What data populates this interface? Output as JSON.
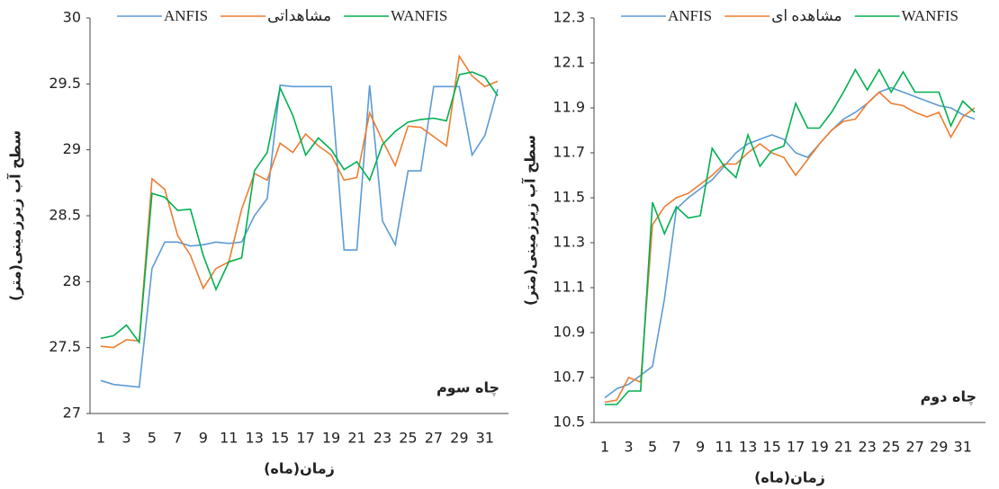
{
  "chart_data": [
    {
      "type": "line",
      "y_label": "سطح آب زیرزمینی(متر)",
      "x_label": "زمان(ماه)",
      "annotation": "چاه سوم",
      "legend": "top",
      "categories": [
        1,
        null,
        3,
        null,
        5,
        null,
        7,
        null,
        9,
        null,
        11,
        null,
        13,
        null,
        15,
        null,
        17,
        null,
        19,
        null,
        21,
        null,
        23,
        null,
        25,
        null,
        27,
        null,
        29,
        null,
        31,
        null
      ],
      "ylim": [
        27,
        30
      ],
      "yticks": [
        27,
        27.5,
        28,
        28.5,
        29,
        29.5,
        30
      ],
      "series": [
        {
          "name": "ANFIS",
          "color": "#5b9bd5",
          "values": [
            27.25,
            27.22,
            27.21,
            27.2,
            28.1,
            28.3,
            28.3,
            28.27,
            28.28,
            28.3,
            28.29,
            28.3,
            28.5,
            28.63,
            29.49,
            29.48,
            29.48,
            29.48,
            29.48,
            28.24,
            28.24,
            29.49,
            28.46,
            28.28,
            28.84,
            28.84,
            29.48,
            29.48,
            29.48,
            28.96,
            29.11,
            29.46
          ]
        },
        {
          "name": "مشاهداتی",
          "color": "#ed7d31",
          "values": [
            27.51,
            27.5,
            27.56,
            27.55,
            28.78,
            28.7,
            28.35,
            28.2,
            27.95,
            28.1,
            28.15,
            28.55,
            28.82,
            28.77,
            29.05,
            28.98,
            29.12,
            29.03,
            28.96,
            28.77,
            28.79,
            29.28,
            29.07,
            28.88,
            29.18,
            29.17,
            29.1,
            29.03,
            29.71,
            29.56,
            29.48,
            29.52
          ]
        },
        {
          "name": "WANFIS",
          "color": "#00b050",
          "values": [
            27.57,
            27.59,
            27.67,
            27.54,
            28.67,
            28.64,
            28.54,
            28.55,
            28.2,
            27.94,
            28.15,
            28.18,
            28.84,
            28.98,
            29.47,
            29.26,
            28.96,
            29.09,
            29.0,
            28.85,
            28.91,
            28.77,
            29.04,
            29.14,
            29.21,
            29.23,
            29.24,
            29.22,
            29.57,
            29.59,
            29.55,
            29.41
          ]
        }
      ]
    },
    {
      "type": "line",
      "y_label": "سطح آب زیرزمینی(متر)",
      "x_label": "زمان(ماه)",
      "annotation": "چاه دوم",
      "legend": "top",
      "categories": [
        1,
        null,
        3,
        null,
        5,
        null,
        7,
        null,
        9,
        null,
        11,
        null,
        13,
        null,
        15,
        null,
        17,
        null,
        19,
        null,
        21,
        null,
        23,
        null,
        25,
        null,
        27,
        null,
        29,
        null,
        31,
        null
      ],
      "ylim": [
        10.5,
        12.3
      ],
      "yticks": [
        10.5,
        10.7,
        10.9,
        11.1,
        11.3,
        11.5,
        11.7,
        11.9,
        12.1,
        12.3
      ],
      "series": [
        {
          "name": "ANFIS",
          "color": "#5b9bd5",
          "values": [
            10.61,
            10.65,
            10.67,
            10.71,
            10.75,
            11.05,
            11.45,
            11.5,
            11.54,
            11.58,
            11.64,
            11.7,
            11.74,
            11.76,
            11.78,
            11.76,
            11.7,
            11.68,
            11.74,
            11.8,
            11.85,
            11.88,
            11.92,
            11.97,
            11.99,
            11.97,
            11.95,
            11.93,
            11.91,
            11.9,
            11.87,
            11.85
          ]
        },
        {
          "name": "مشاهده ای",
          "color": "#ed7d31",
          "values": [
            10.59,
            10.6,
            10.7,
            10.68,
            11.38,
            11.46,
            11.5,
            11.52,
            11.56,
            11.6,
            11.65,
            11.65,
            11.7,
            11.74,
            11.7,
            11.68,
            11.6,
            11.67,
            11.74,
            11.8,
            11.84,
            11.85,
            11.92,
            11.97,
            11.92,
            11.91,
            11.88,
            11.86,
            11.88,
            11.77,
            11.86,
            11.9
          ]
        },
        {
          "name": "WANFIS",
          "color": "#00b050",
          "values": [
            10.58,
            10.58,
            10.64,
            10.64,
            11.48,
            11.34,
            11.46,
            11.41,
            11.42,
            11.72,
            11.64,
            11.59,
            11.78,
            11.64,
            11.71,
            11.73,
            11.92,
            11.81,
            11.81,
            11.88,
            11.97,
            12.07,
            11.98,
            12.07,
            11.97,
            12.06,
            11.97,
            11.97,
            11.97,
            11.82,
            11.93,
            11.88
          ]
        }
      ]
    }
  ]
}
